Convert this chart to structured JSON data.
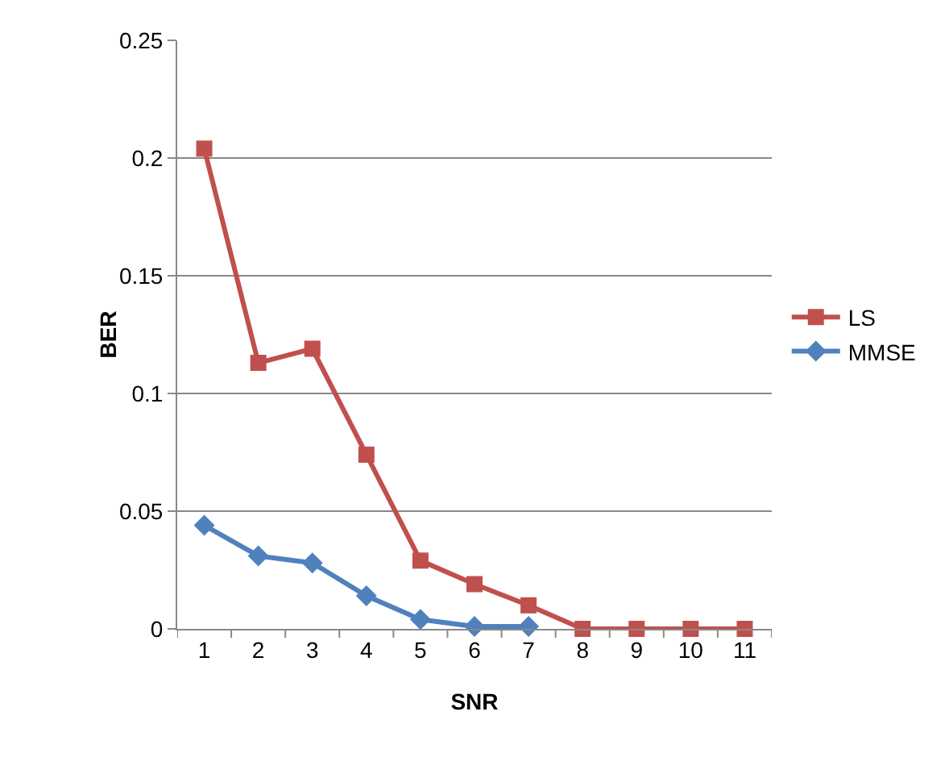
{
  "chart_data": {
    "type": "line",
    "xlabel": "SNR",
    "ylabel": "BER",
    "categories": [
      "1",
      "2",
      "3",
      "4",
      "5",
      "6",
      "7",
      "8",
      "9",
      "10",
      "11"
    ],
    "ylim": [
      0,
      0.25
    ],
    "yticks": [
      0,
      0.05,
      0.1,
      0.15,
      0.2,
      0.25
    ],
    "grid": "y",
    "legend": "right",
    "line_style": "solid",
    "series": [
      {
        "name": "LS",
        "color": "#c0504d",
        "marker": "square",
        "values": [
          0.204,
          0.113,
          0.119,
          0.074,
          0.029,
          0.019,
          0.01,
          0,
          0,
          0,
          0
        ]
      },
      {
        "name": "MMSE",
        "color": "#4f81bd",
        "marker": "diamond",
        "values": [
          0.044,
          0.031,
          0.028,
          0.014,
          0.004,
          0.001,
          0.001,
          null,
          null,
          null,
          null
        ]
      }
    ]
  }
}
